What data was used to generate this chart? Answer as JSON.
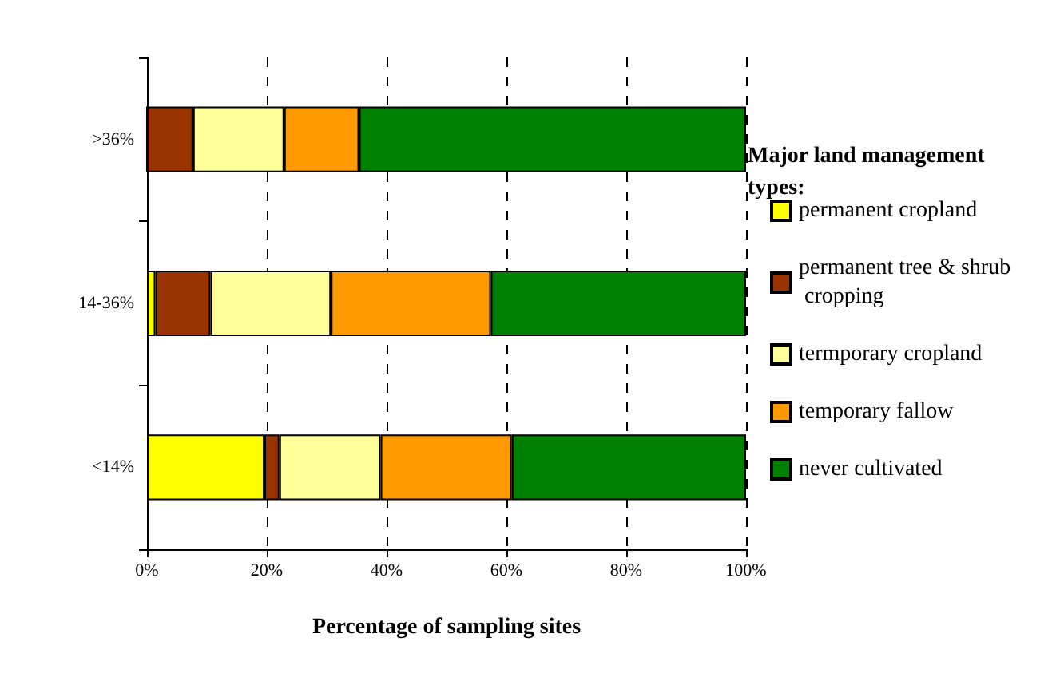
{
  "chart_data": {
    "type": "bar",
    "orientation": "horizontal",
    "stacked": true,
    "xlabel": "Percentage of sampling sites",
    "legend_title": "Major land management types:",
    "categories": [
      ">36%",
      "14-36%",
      "<14%"
    ],
    "series": [
      {
        "name": "permanent cropland",
        "color": "#ffff00",
        "values": [
          0,
          1.4,
          19.6
        ]
      },
      {
        "name": "permanent tree & shrub cropping",
        "color": "#993300",
        "values": [
          7.7,
          9.2,
          2.5
        ]
      },
      {
        "name": "termporary cropland",
        "color": "#ffff99",
        "values": [
          15.2,
          20.1,
          16.9
        ]
      },
      {
        "name": "temporary fallow",
        "color": "#ff9900",
        "values": [
          12.5,
          26.7,
          21.9
        ]
      },
      {
        "name": "never cultivated",
        "color": "#008000",
        "values": [
          64.6,
          42.6,
          39.1
        ]
      }
    ],
    "xlim": [
      0,
      100
    ],
    "xticks": [
      {
        "value": 0,
        "label": "0%"
      },
      {
        "value": 20,
        "label": "20%"
      },
      {
        "value": 40,
        "label": "40%"
      },
      {
        "value": 60,
        "label": "60%"
      },
      {
        "value": 80,
        "label": "80%"
      },
      {
        "value": 100,
        "label": "100%"
      }
    ],
    "grid": "x",
    "legend": "right"
  }
}
